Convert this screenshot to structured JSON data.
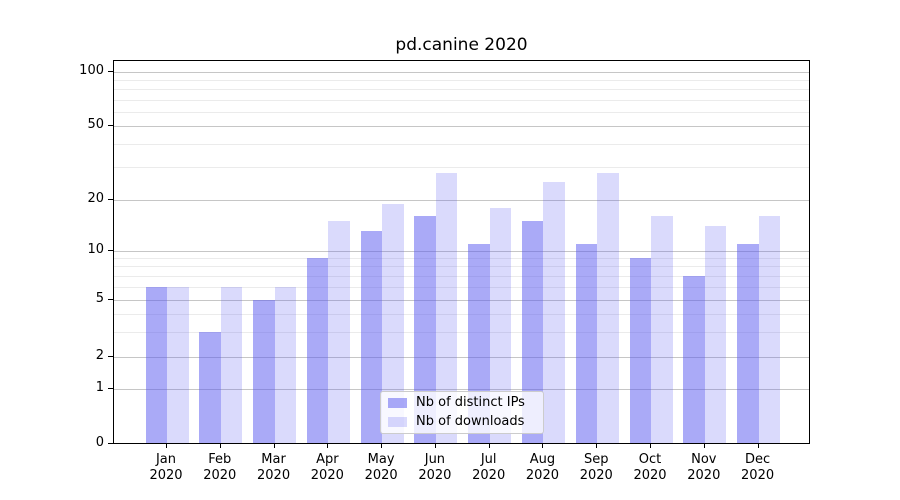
{
  "title": "pd.canine 2020",
  "chart_data": {
    "type": "bar",
    "title": "pd.canine 2020",
    "categories": [
      "Jan 2020",
      "Feb 2020",
      "Mar 2020",
      "Apr 2020",
      "May 2020",
      "Jun 2020",
      "Jul 2020",
      "Aug 2020",
      "Sep 2020",
      "Oct 2020",
      "Nov 2020",
      "Dec 2020"
    ],
    "series": [
      {
        "name": "Nb of distinct IPs",
        "color": "rgba(85,85,240,0.5)",
        "values": [
          6,
          3,
          5,
          9,
          13,
          16,
          11,
          15,
          11,
          9,
          7,
          11
        ]
      },
      {
        "name": "Nb of downloads",
        "color": "rgba(85,85,240,0.22)",
        "values": [
          6,
          6,
          6,
          15,
          19,
          28,
          18,
          25,
          28,
          16,
          14,
          16
        ]
      }
    ],
    "xlabel": "",
    "ylabel": "",
    "yscale": "log-like with linear zero region",
    "ylim": [
      0,
      100
    ],
    "grid": "horizontal, major and minor",
    "legend_position": "lower center"
  },
  "y_axis": {
    "tick_labels": [
      "100",
      "50",
      "20",
      "10",
      "5",
      "2",
      "1",
      "0"
    ],
    "tick_values": [
      100,
      50,
      20,
      10,
      5,
      2,
      1,
      0
    ],
    "minor_gridline_values": [
      3,
      4,
      6,
      7,
      8,
      9,
      30,
      40,
      60,
      70,
      80,
      90
    ]
  },
  "x_axis": {
    "months": [
      "Jan",
      "Feb",
      "Mar",
      "Apr",
      "May",
      "Jun",
      "Jul",
      "Aug",
      "Sep",
      "Oct",
      "Nov",
      "Dec"
    ],
    "year": "2020"
  },
  "legend": {
    "items": [
      {
        "label": "Nb of distinct IPs"
      },
      {
        "label": "Nb of downloads"
      }
    ]
  },
  "colors": {
    "background": "#ffffff",
    "spine": "#000000",
    "grid_major": "#c6c6c6",
    "grid_minor": "#ebebeb",
    "text": "#000000",
    "legend_border": "#cccccc",
    "legend_background": "rgba(255,255,255,0.8)"
  }
}
